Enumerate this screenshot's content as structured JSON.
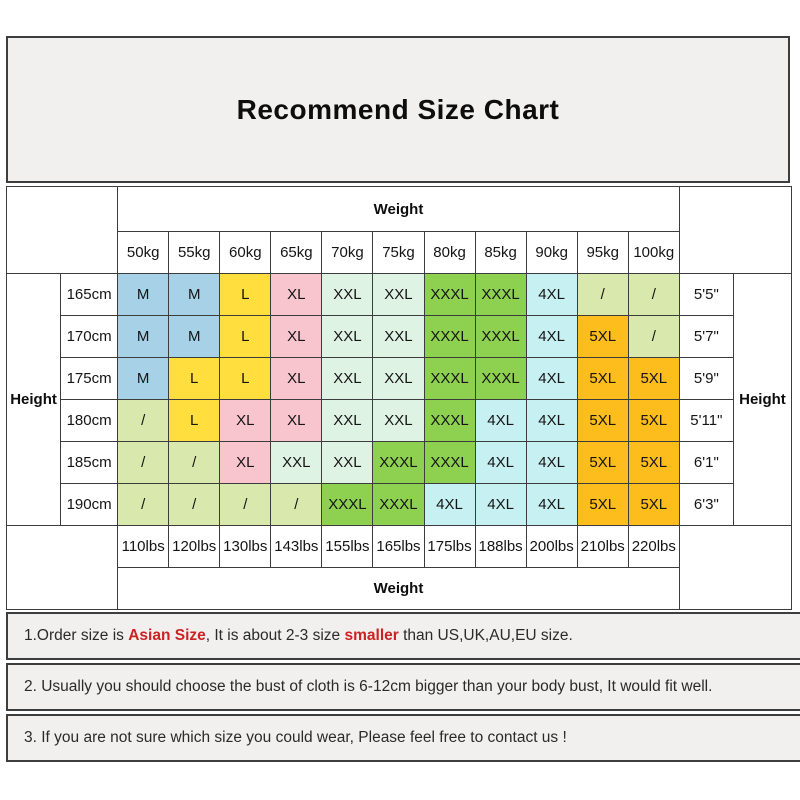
{
  "title": "Recommend Size Chart",
  "chart_data": {
    "type": "table",
    "title": "Recommend Size Chart",
    "weight_axis_label": "Weight",
    "height_axis_label": "Height",
    "columns_weight_kg": [
      "50kg",
      "55kg",
      "60kg",
      "65kg",
      "70kg",
      "75kg",
      "80kg",
      "85kg",
      "90kg",
      "95kg",
      "100kg"
    ],
    "columns_weight_lbs": [
      "110lbs",
      "120lbs",
      "130lbs",
      "143lbs",
      "155lbs",
      "165lbs",
      "175lbs",
      "188lbs",
      "200lbs",
      "210lbs",
      "220lbs"
    ],
    "rows": [
      {
        "height_cm": "165cm",
        "height_ft": "5'5\"",
        "sizes": [
          "M",
          "M",
          "L",
          "XL",
          "XXL",
          "XXL",
          "XXXL",
          "XXXL",
          "4XL",
          "/",
          "/"
        ]
      },
      {
        "height_cm": "170cm",
        "height_ft": "5'7\"",
        "sizes": [
          "M",
          "M",
          "L",
          "XL",
          "XXL",
          "XXL",
          "XXXL",
          "XXXL",
          "4XL",
          "5XL",
          "/"
        ]
      },
      {
        "height_cm": "175cm",
        "height_ft": "5'9\"",
        "sizes": [
          "M",
          "L",
          "L",
          "XL",
          "XXL",
          "XXL",
          "XXXL",
          "XXXL",
          "4XL",
          "5XL",
          "5XL"
        ]
      },
      {
        "height_cm": "180cm",
        "height_ft": "5'11\"",
        "sizes": [
          "/",
          "L",
          "XL",
          "XL",
          "XXL",
          "XXL",
          "XXXL",
          "4XL",
          "4XL",
          "5XL",
          "5XL"
        ]
      },
      {
        "height_cm": "185cm",
        "height_ft": "6'1\"",
        "sizes": [
          "/",
          "/",
          "XL",
          "XXL",
          "XXL",
          "XXXL",
          "XXXL",
          "4XL",
          "4XL",
          "5XL",
          "5XL"
        ]
      },
      {
        "height_cm": "190cm",
        "height_ft": "6'3\"",
        "sizes": [
          "/",
          "/",
          "/",
          "/",
          "XXXL",
          "XXXL",
          "4XL",
          "4XL",
          "4XL",
          "5XL",
          "5XL"
        ]
      }
    ],
    "size_colors": {
      "M": "#a6d1e6",
      "L": "#ffde3d",
      "XL": "#f8c4ce",
      "XXL": "#dff3e4",
      "XXXL": "#8ed04f",
      "4XL": "#c7f0f2",
      "5XL": "#fcbd1d",
      "/": "#d9e9ad"
    }
  },
  "notes": [
    {
      "parts": [
        {
          "style": "normal",
          "text": "1.Order size is "
        },
        {
          "style": "red",
          "text": "Asian Size"
        },
        {
          "style": "normal",
          "text": ", It is about 2-3 size "
        },
        {
          "style": "red",
          "text": "smaller"
        },
        {
          "style": "normal",
          "text": " than US,UK,AU,EU size."
        }
      ]
    },
    {
      "parts": [
        {
          "style": "normal",
          "text": "2. Usually you should choose the bust of cloth is 6-12cm bigger than your body bust, It would fit well."
        }
      ]
    },
    {
      "parts": [
        {
          "style": "normal",
          "text": "3. If you are not sure which size you could wear, Please feel free to contact us !"
        }
      ]
    }
  ]
}
